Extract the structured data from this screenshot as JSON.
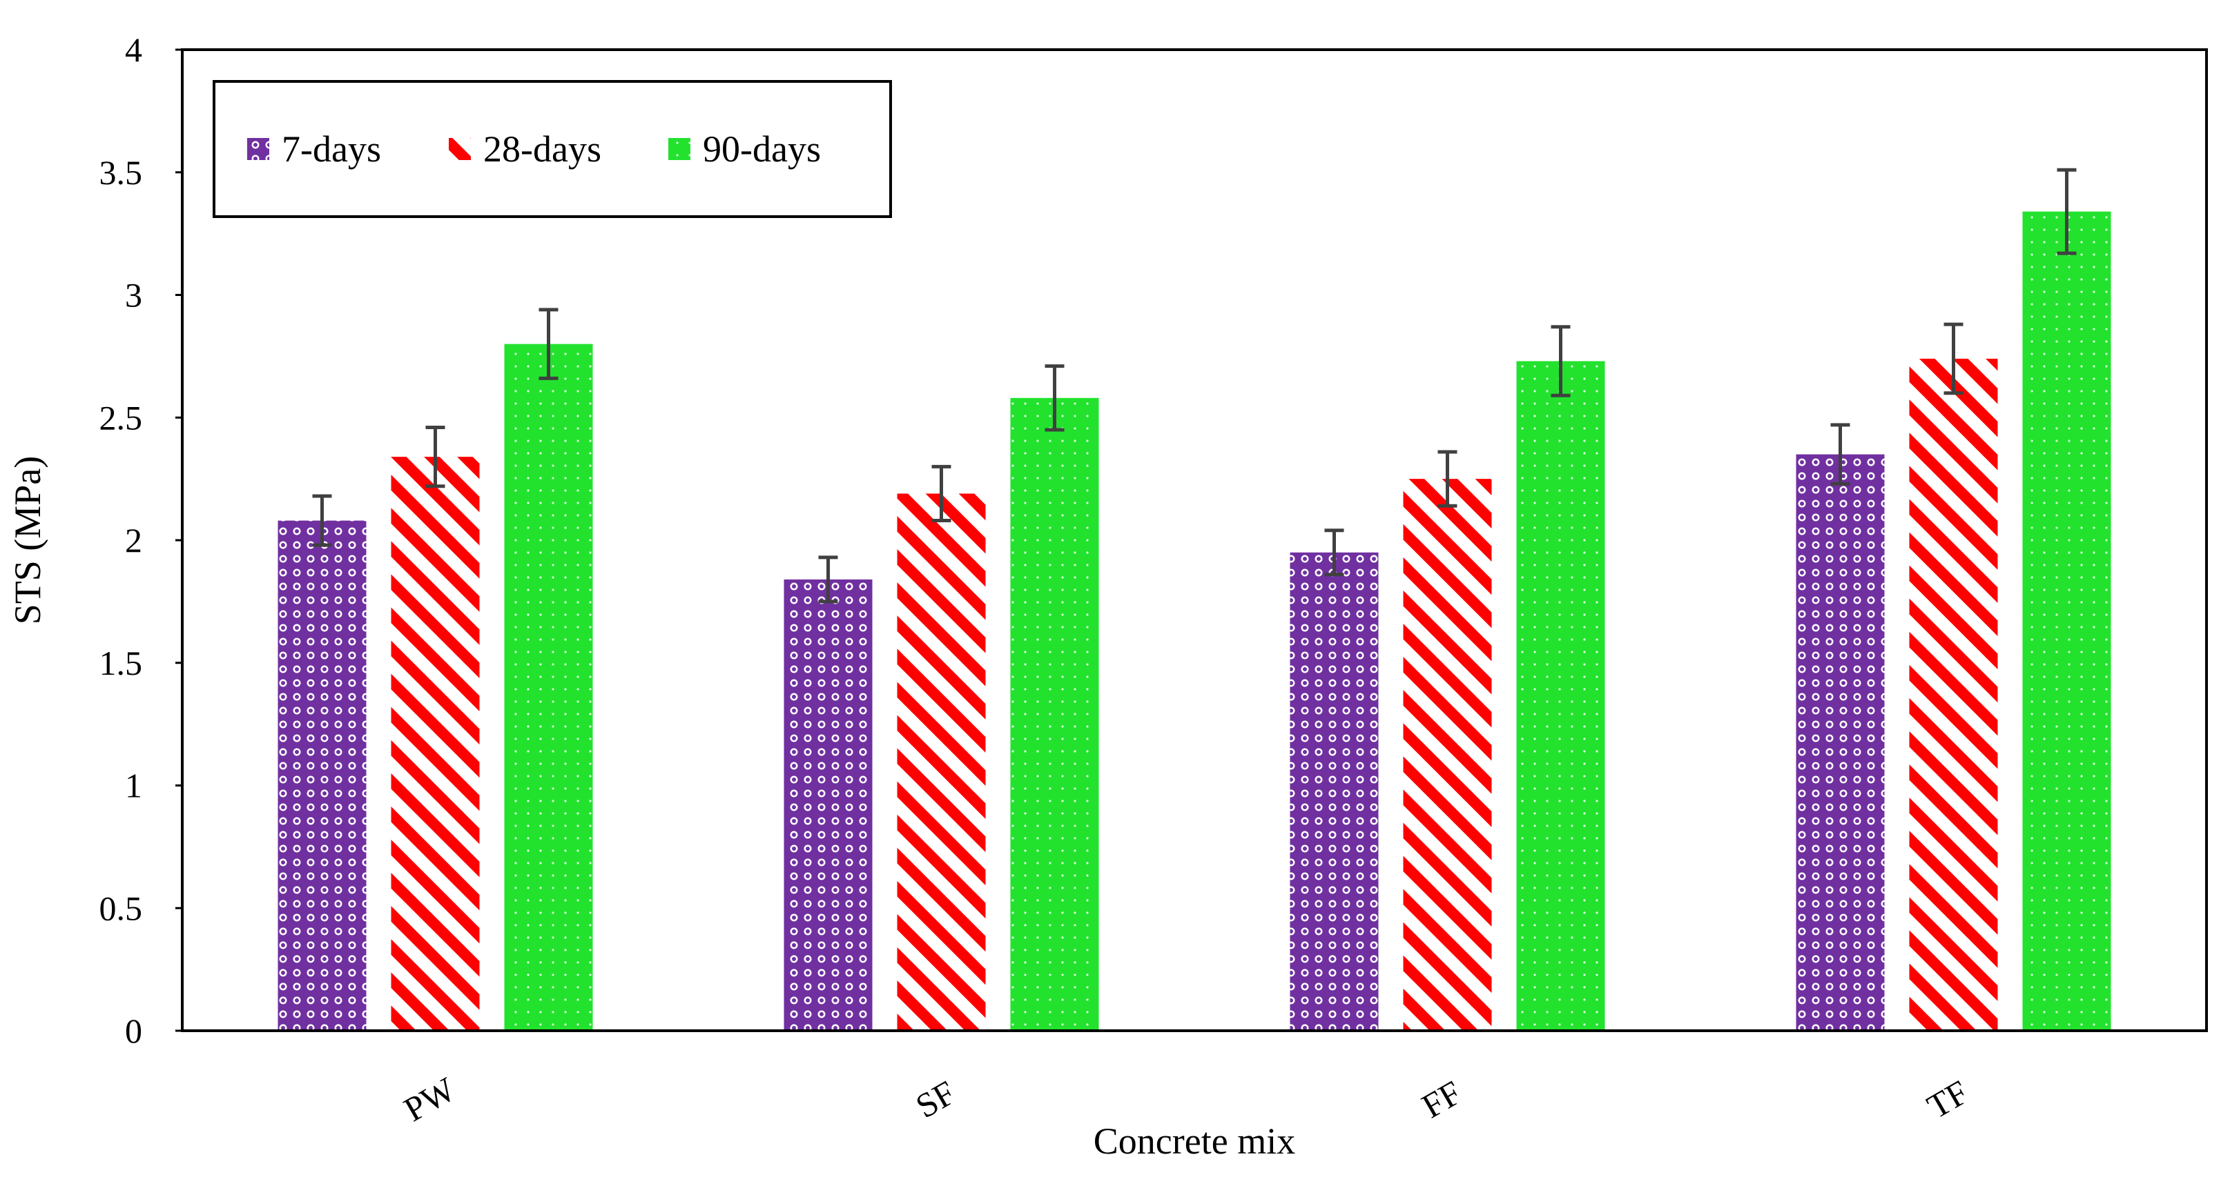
{
  "chart_data": {
    "type": "bar",
    "title": "",
    "xlabel": "Concrete mix",
    "ylabel": "STS (MPa)",
    "ylim": [
      0,
      4
    ],
    "yticks": [
      "0",
      "0.5",
      "1",
      "1.5",
      "2",
      "2.5",
      "3",
      "3.5",
      "4"
    ],
    "categories": [
      "PW",
      "SF",
      "FF",
      "TF"
    ],
    "grid": false,
    "legend_position": "top-left",
    "series": [
      {
        "name": "7-days",
        "values": [
          2.08,
          1.84,
          1.95,
          2.35
        ],
        "errors": [
          0.1,
          0.09,
          0.09,
          0.12
        ],
        "color": "#7030a0",
        "pattern": "dots"
      },
      {
        "name": "28-days",
        "values": [
          2.34,
          2.19,
          2.25,
          2.74
        ],
        "errors": [
          0.12,
          0.11,
          0.11,
          0.14
        ],
        "color": "#ff0000",
        "pattern": "diagonal-stripes"
      },
      {
        "name": "90-days",
        "values": [
          2.8,
          2.58,
          2.73,
          3.34
        ],
        "errors": [
          0.14,
          0.13,
          0.14,
          0.17
        ],
        "color": "#22e22e",
        "pattern": "fine-dots"
      }
    ],
    "error_bar_color": "#404040"
  }
}
